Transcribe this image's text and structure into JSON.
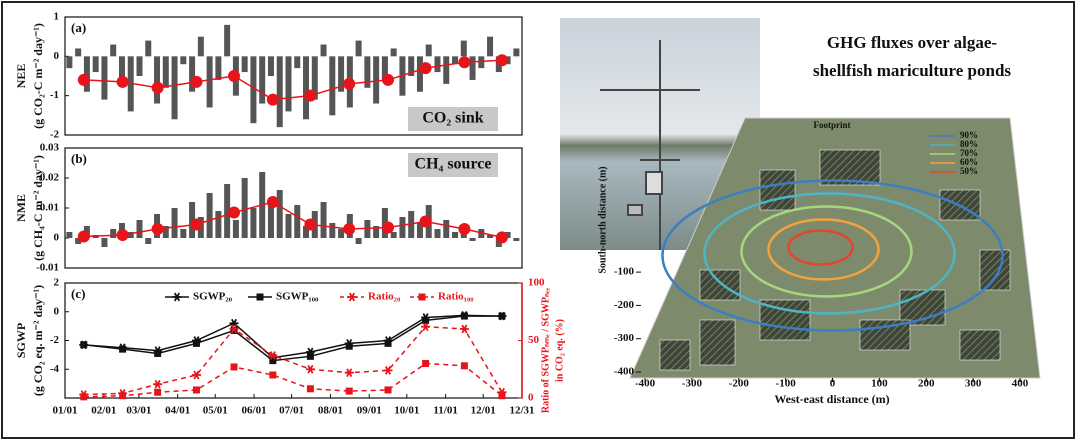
{
  "header": {
    "title_lines": [
      "GHG fluxes over algae-",
      "shellfish mariculture ponds"
    ]
  },
  "chart_data": [
    {
      "type": "bar_line",
      "panel": "(a)",
      "ylabel": [
        "NEE",
        "(g CO₂-C m⁻² day⁻¹)"
      ],
      "annotation": "CO₂ sink",
      "xlim": [
        0,
        365
      ],
      "ylim": [
        -2,
        1
      ],
      "yticks": [
        -2,
        -1,
        0,
        1
      ],
      "series": [
        {
          "type": "bar",
          "color": "#555555",
          "x": [
            3.5,
            10.5,
            17.5,
            24.5,
            31.5,
            38.5,
            45.5,
            52.5,
            59.5,
            66.5,
            73.5,
            80.5,
            87.5,
            94.5,
            101.5,
            108.5,
            115.5,
            122.5,
            129.5,
            136.5,
            143.5,
            150.5,
            157.5,
            164.5,
            171.5,
            178.5,
            185.5,
            192.5,
            199.5,
            206.5,
            213.5,
            220.5,
            227.5,
            234.5,
            241.5,
            248.5,
            255.5,
            262.5,
            269.5,
            276.5,
            283.5,
            290.5,
            297.5,
            304.5,
            311.5,
            318.5,
            325.5,
            332.5,
            339.5,
            346.5,
            353.5,
            360.5
          ],
          "values": [
            -0.3,
            0.2,
            -0.9,
            -0.4,
            -1.1,
            0.3,
            -0.7,
            -1.4,
            -0.5,
            0.4,
            -1.2,
            -0.8,
            -1.6,
            -0.2,
            -0.9,
            0.5,
            -1.3,
            -0.6,
            0.8,
            -1.0,
            -0.4,
            -1.7,
            -1.2,
            -0.5,
            -1.8,
            -1.4,
            -0.3,
            -1.6,
            -1.1,
            0.3,
            -1.5,
            -0.9,
            -1.3,
            0.4,
            -0.8,
            -1.2,
            -0.6,
            0.2,
            -1.0,
            -0.5,
            -0.9,
            0.3,
            -0.4,
            -0.7,
            -0.2,
            0.4,
            -0.6,
            -0.3,
            0.5,
            -0.4,
            -0.2,
            0.2
          ]
        },
        {
          "type": "line",
          "color": "#e8141b",
          "marker": "circle",
          "x": [
            15,
            46,
            74,
            105,
            135,
            166,
            196,
            227,
            258,
            288,
            319,
            349
          ],
          "values": [
            -0.6,
            -0.65,
            -0.8,
            -0.65,
            -0.5,
            -1.1,
            -1.0,
            -0.7,
            -0.6,
            -0.3,
            -0.15,
            -0.1
          ]
        }
      ]
    },
    {
      "type": "bar_line",
      "panel": "(b)",
      "ylabel": [
        "NME",
        "(g CH₄-C m⁻² day⁻¹)"
      ],
      "annotation": "CH₄ source",
      "xlim": [
        0,
        365
      ],
      "ylim": [
        -0.01,
        0.03
      ],
      "yticks": [
        -0.01,
        0,
        0.01,
        0.02,
        0.03
      ],
      "series": [
        {
          "type": "bar",
          "color": "#555555",
          "x": [
            3.5,
            10.5,
            17.5,
            24.5,
            31.5,
            38.5,
            45.5,
            52.5,
            59.5,
            66.5,
            73.5,
            80.5,
            87.5,
            94.5,
            101.5,
            108.5,
            115.5,
            122.5,
            129.5,
            136.5,
            143.5,
            150.5,
            157.5,
            164.5,
            171.5,
            178.5,
            185.5,
            192.5,
            199.5,
            206.5,
            213.5,
            220.5,
            227.5,
            234.5,
            241.5,
            248.5,
            255.5,
            262.5,
            269.5,
            276.5,
            283.5,
            290.5,
            297.5,
            304.5,
            311.5,
            318.5,
            325.5,
            332.5,
            339.5,
            346.5,
            353.5,
            360.5
          ],
          "values": [
            0.002,
            -0.002,
            0.004,
            0.001,
            -0.003,
            0.003,
            0.005,
            0.002,
            0.006,
            -0.002,
            0.008,
            0.004,
            0.01,
            0.003,
            0.012,
            0.007,
            0.015,
            0.009,
            0.018,
            0.006,
            0.02,
            0.01,
            0.022,
            0.013,
            0.016,
            0.008,
            0.011,
            0.004,
            0.009,
            0.012,
            0.005,
            0.003,
            0.008,
            -0.002,
            0.006,
            0.004,
            0.01,
            0.002,
            0.007,
            0.009,
            0.005,
            0.011,
            0.003,
            0.006,
            0.002,
            0.004,
            -0.001,
            0.003,
            0.001,
            -0.003,
            0.002,
            -0.001
          ]
        },
        {
          "type": "line",
          "color": "#e8141b",
          "marker": "circle",
          "x": [
            15,
            46,
            74,
            105,
            135,
            166,
            196,
            227,
            258,
            288,
            319,
            349
          ],
          "values": [
            0.0005,
            0.001,
            0.003,
            0.0045,
            0.0085,
            0.012,
            0.0045,
            0.003,
            0.0035,
            0.0055,
            0.003,
            0.0002
          ]
        }
      ]
    },
    {
      "type": "dual_line",
      "panel": "(c)",
      "ylabel": [
        "SGWP",
        "(g CO₂ eq. m⁻² day⁻¹)"
      ],
      "y2label": [
        "Ratio of SGWPₙₘₑ / SGWPₙₑₑ",
        "in CO₂ eq. (%)"
      ],
      "xlim": [
        0,
        365
      ],
      "xticks": [
        {
          "value": 0,
          "label": "01/01"
        },
        {
          "value": 31,
          "label": "02/01"
        },
        {
          "value": 59,
          "label": "03/01"
        },
        {
          "value": 90,
          "label": "04/01"
        },
        {
          "value": 120,
          "label": "05/01"
        },
        {
          "value": 151,
          "label": "06/01"
        },
        {
          "value": 181,
          "label": "07/01"
        },
        {
          "value": 212,
          "label": "08/01"
        },
        {
          "value": 243,
          "label": "09/01"
        },
        {
          "value": 273,
          "label": "10/01"
        },
        {
          "value": 304,
          "label": "11/01"
        },
        {
          "value": 334,
          "label": "12/01"
        },
        {
          "value": 365,
          "label": "12/31"
        }
      ],
      "ylim": [
        -6,
        2
      ],
      "yticks": [
        -4,
        -2,
        0,
        2
      ],
      "y2lim": [
        0,
        100
      ],
      "y2ticks": [
        0,
        50,
        100
      ],
      "y2color": "#e8141b",
      "legend": "top",
      "series": [
        {
          "name": "SGWP₂₀",
          "color": "#111111",
          "marker": "star",
          "dash": false,
          "x": [
            15,
            46,
            74,
            105,
            135,
            166,
            196,
            227,
            258,
            288,
            319,
            349
          ],
          "values": [
            -2.3,
            -2.5,
            -2.7,
            -2.0,
            -0.8,
            -3.2,
            -2.8,
            -2.2,
            -2.0,
            -0.4,
            -0.25,
            -0.3
          ]
        },
        {
          "name": "SGWP₁₀₀",
          "color": "#111111",
          "marker": "square",
          "dash": false,
          "x": [
            15,
            46,
            74,
            105,
            135,
            166,
            196,
            227,
            258,
            288,
            319,
            349
          ],
          "values": [
            -2.3,
            -2.6,
            -2.9,
            -2.2,
            -1.3,
            -3.4,
            -3.1,
            -2.4,
            -2.2,
            -0.6,
            -0.3,
            -0.3
          ]
        },
        {
          "name": "Ratio₂₀",
          "color": "#e8141b",
          "marker": "star",
          "dash": true,
          "axis": "y2",
          "x": [
            15,
            46,
            74,
            105,
            135,
            166,
            196,
            227,
            258,
            288,
            319,
            349
          ],
          "values": [
            3,
            4,
            12,
            20,
            60,
            37,
            25,
            22,
            24,
            62,
            60,
            5
          ]
        },
        {
          "name": "Ratio₁₀₀",
          "color": "#e8141b",
          "marker": "square",
          "dash": true,
          "axis": "y2",
          "x": [
            15,
            46,
            74,
            105,
            135,
            166,
            196,
            227,
            258,
            288,
            319,
            349
          ],
          "values": [
            1,
            2,
            5,
            7,
            27,
            20,
            8,
            6,
            7,
            30,
            28,
            2
          ]
        }
      ]
    },
    {
      "type": "footprint",
      "title": "Footprint",
      "xlabel": "West-east distance (m)",
      "ylabel": "South-north distance (m)",
      "xlim": [
        -400,
        400
      ],
      "xticks": [
        -400,
        -300,
        -200,
        -100,
        0,
        100,
        200,
        300,
        400
      ],
      "ylim": [
        -400,
        100
      ],
      "yticks": [
        -400,
        -300,
        -200,
        -100
      ],
      "series": [
        {
          "name": "90%",
          "color": "#3a7fc2"
        },
        {
          "name": "80%",
          "color": "#4fb3c6"
        },
        {
          "name": "70%",
          "color": "#a6d77e"
        },
        {
          "name": "60%",
          "color": "#f2a33c"
        },
        {
          "name": "50%",
          "color": "#e0472c"
        }
      ]
    }
  ]
}
